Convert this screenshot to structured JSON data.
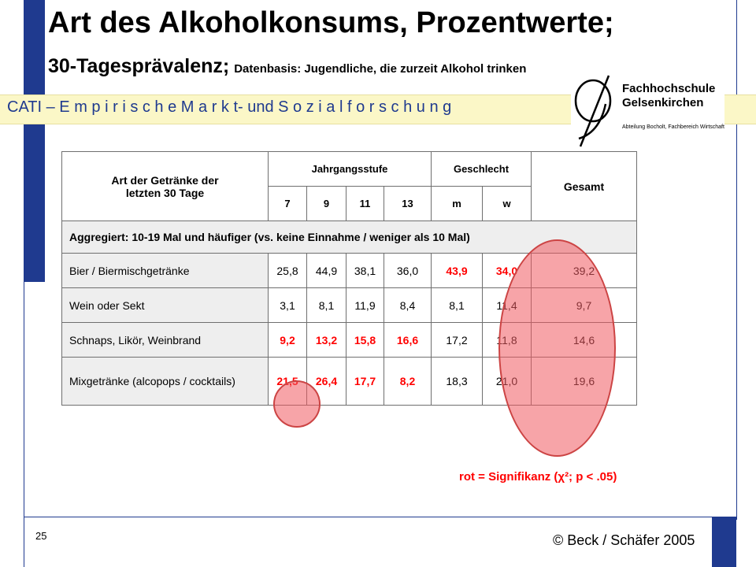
{
  "slide": {
    "title": "Art des Alkoholkonsums, Prozentwerte;",
    "subtitle_main": "30-Tagesprävalenz;",
    "subtitle_small": "Datenbasis: Jugendliche, die zurzeit Alkohol trinken",
    "banner": "CATI – E m p i r i s c h e  M a r k t- und S o z i a l f o r s c h u n g",
    "page_number": "25",
    "copyright": "© Beck / Schäfer 2005",
    "footnote": "rot = Signifikanz (χ²; p < .05)"
  },
  "logo": {
    "line1": "Fachhochschule",
    "line2": "Gelsenkirchen",
    "line3": "Abteilung Bocholt, Fachbereich Wirtschaft"
  },
  "colors": {
    "accent_blue": "#1f3a8f",
    "banner_bg": "#fbf7c7",
    "significant_red": "#ff0000",
    "highlight": "#f15a60"
  },
  "table": {
    "header_label": "Art der Getränke der letzten 30 Tage",
    "group_jahrgang": "Jahrgangsstufe",
    "group_geschlecht": "Geschlecht",
    "gesamt": "Gesamt",
    "sub_headers": [
      "7",
      "9",
      "11",
      "13",
      "m",
      "w"
    ],
    "aggregate_row": "Aggregiert: 10-19 Mal und häufiger (vs. keine Einnahme / weniger als 10 Mal)",
    "rows": [
      {
        "label": "Bier / Biermischgetränke",
        "values": [
          "25,8",
          "44,9",
          "38,1",
          "36,0",
          "43,9",
          "34,0",
          "39,2"
        ],
        "significant": [
          false,
          false,
          false,
          false,
          true,
          true,
          false
        ]
      },
      {
        "label": "Wein oder Sekt",
        "values": [
          "3,1",
          "8,1",
          "11,9",
          "8,4",
          "8,1",
          "11,4",
          "9,7"
        ],
        "significant": [
          false,
          false,
          false,
          false,
          false,
          false,
          false
        ]
      },
      {
        "label": "Schnaps, Likör, Weinbrand",
        "values": [
          "9,2",
          "13,2",
          "15,8",
          "16,6",
          "17,2",
          "11,8",
          "14,6"
        ],
        "significant": [
          true,
          true,
          true,
          true,
          false,
          false,
          false
        ]
      },
      {
        "label": "Mixgetränke (alcopops / cocktails)",
        "values": [
          "21,5",
          "26,4",
          "17,7",
          "8,2",
          "18,3",
          "21,0",
          "19,6"
        ],
        "significant": [
          true,
          true,
          true,
          true,
          false,
          false,
          false
        ]
      }
    ]
  }
}
